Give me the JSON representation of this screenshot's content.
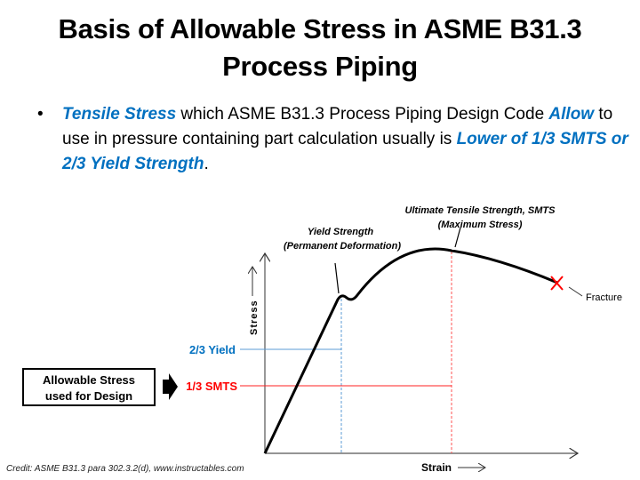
{
  "title_line1": "Basis of Allowable Stress in ASME B31.3",
  "title_line2": "Process Piping",
  "bullet": {
    "marker": "•",
    "part1": "Tensile Stress",
    "part2": " which ASME B31.3 Process Piping Design Code ",
    "part3": "Allow",
    "part4": " to use in pressure containing part calculation usually is ",
    "part5": "Lower of 1/3 SMTS or 2/3 Yield Strength",
    "part6": "."
  },
  "diagram": {
    "yield_label_1": "Yield Strength",
    "yield_label_2": "(Permanent Deformation)",
    "uts_label_1": "Ultimate Tensile Strength, SMTS",
    "uts_label_2": "(Maximum Stress)",
    "fracture_label": "Fracture",
    "y_axis_label": "Stress",
    "x_axis_label": "Strain",
    "two_thirds_yield": "2/3 Yield",
    "one_third_smts": "1/3 SMTS",
    "allowable_box_1": "Allowable Stress",
    "allowable_box_2": "used for Design",
    "colors": {
      "yield": "#0070C0",
      "smts": "#FF0000",
      "curve": "#000000"
    }
  },
  "credit": "Credit: ASME B31.3 para 302.3.2(d), www.instructables.com"
}
